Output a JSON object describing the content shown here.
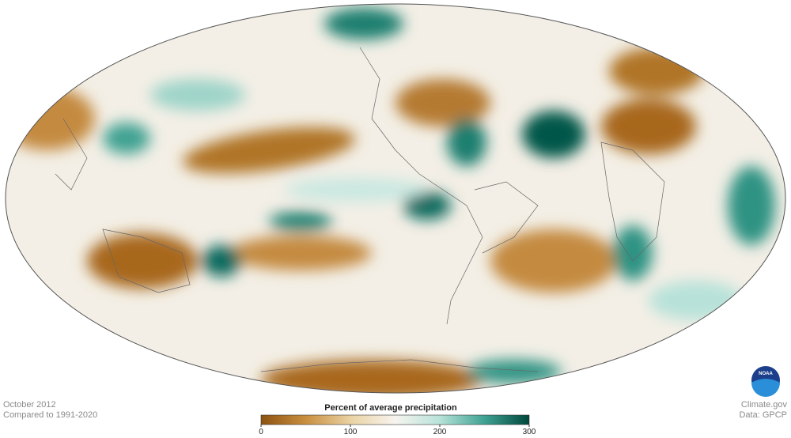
{
  "header": {
    "date": "October 2012",
    "baseline": "Compared to 1991-2020"
  },
  "colorbar": {
    "title": "Percent of average precipitation",
    "range": [
      0,
      300
    ],
    "ticks": [
      0,
      100,
      200,
      300
    ],
    "colors": [
      "#8c5210",
      "#c98f3f",
      "#ead2a3",
      "#f7f4ef",
      "#b7e2d9",
      "#3fa293",
      "#00473c"
    ]
  },
  "credits": {
    "site": "Climate.gov",
    "source": "Data: GPCP",
    "logo": "NOAA"
  }
}
